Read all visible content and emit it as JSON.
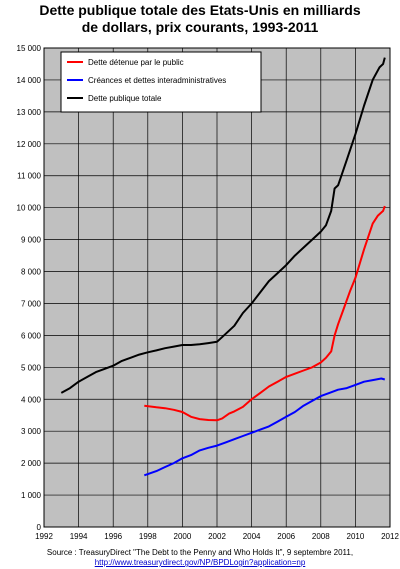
{
  "title": {
    "line1": "Dette publique totale des Etats-Unis en milliards",
    "line2": "de dollars, prix courants, 1993-2011"
  },
  "source": {
    "text": "Source : TreasuryDirect \"The Debt to the Penny and Who Holds It\", 9 septembre 2011,",
    "link": "http://www.treasurydirect.gov/NP/BPDLogin?application=np"
  },
  "chart_data": {
    "type": "line",
    "title": "Dette publique totale des Etats-Unis en milliards de dollars, prix courants, 1993-2011",
    "xlabel": "",
    "ylabel": "",
    "xlim": [
      1992,
      2012
    ],
    "ylim": [
      0,
      15000
    ],
    "grid": true,
    "legend_position": "top-left",
    "x_ticks": [
      1992,
      1994,
      1996,
      1998,
      2000,
      2002,
      2004,
      2006,
      2008,
      2010,
      2012
    ],
    "y_ticks": [
      0,
      1000,
      2000,
      3000,
      4000,
      5000,
      6000,
      7000,
      8000,
      9000,
      10000,
      11000,
      12000,
      13000,
      14000,
      15000
    ],
    "x_tick_labels": [
      "1992",
      "1994",
      "1996",
      "1998",
      "2000",
      "2002",
      "2004",
      "2006",
      "2008",
      "2010",
      "2012"
    ],
    "y_tick_labels": [
      "0",
      "1 000",
      "2 000",
      "3 000",
      "4 000",
      "5 000",
      "6 000",
      "7 000",
      "8 000",
      "9 000",
      "10 000",
      "11 000",
      "12 000",
      "13 000",
      "14 000",
      "15 000"
    ],
    "series": [
      {
        "name": "Dette détenue par le public",
        "color": "#ff0000",
        "points": [
          [
            1997.8,
            3800
          ],
          [
            1998.5,
            3750
          ],
          [
            1999.0,
            3720
          ],
          [
            1999.5,
            3670
          ],
          [
            2000.0,
            3600
          ],
          [
            2000.5,
            3450
          ],
          [
            2001.0,
            3380
          ],
          [
            2001.5,
            3350
          ],
          [
            2002.0,
            3340
          ],
          [
            2002.3,
            3400
          ],
          [
            2002.7,
            3550
          ],
          [
            2003.0,
            3620
          ],
          [
            2003.5,
            3760
          ],
          [
            2004.0,
            4000
          ],
          [
            2004.5,
            4200
          ],
          [
            2005.0,
            4400
          ],
          [
            2005.5,
            4550
          ],
          [
            2006.0,
            4700
          ],
          [
            2006.5,
            4800
          ],
          [
            2007.0,
            4900
          ],
          [
            2007.5,
            5000
          ],
          [
            2008.0,
            5150
          ],
          [
            2008.3,
            5300
          ],
          [
            2008.6,
            5500
          ],
          [
            2008.8,
            6000
          ],
          [
            2009.0,
            6350
          ],
          [
            2009.3,
            6800
          ],
          [
            2009.7,
            7400
          ],
          [
            2010.0,
            7800
          ],
          [
            2010.5,
            8700
          ],
          [
            2011.0,
            9500
          ],
          [
            2011.3,
            9750
          ],
          [
            2011.6,
            9900
          ],
          [
            2011.7,
            10050
          ]
        ]
      },
      {
        "name": "Créances et dettes interadministratives",
        "color": "#0000ff",
        "points": [
          [
            1997.8,
            1620
          ],
          [
            1998.5,
            1750
          ],
          [
            1999.0,
            1880
          ],
          [
            1999.5,
            2000
          ],
          [
            2000.0,
            2150
          ],
          [
            2000.5,
            2250
          ],
          [
            2001.0,
            2400
          ],
          [
            2001.5,
            2480
          ],
          [
            2002.0,
            2550
          ],
          [
            2002.5,
            2650
          ],
          [
            2003.0,
            2750
          ],
          [
            2003.5,
            2850
          ],
          [
            2004.0,
            2950
          ],
          [
            2004.5,
            3050
          ],
          [
            2005.0,
            3150
          ],
          [
            2005.5,
            3300
          ],
          [
            2006.0,
            3450
          ],
          [
            2006.5,
            3600
          ],
          [
            2007.0,
            3800
          ],
          [
            2007.5,
            3950
          ],
          [
            2008.0,
            4100
          ],
          [
            2008.5,
            4200
          ],
          [
            2009.0,
            4300
          ],
          [
            2009.5,
            4350
          ],
          [
            2010.0,
            4450
          ],
          [
            2010.5,
            4550
          ],
          [
            2011.0,
            4600
          ],
          [
            2011.5,
            4650
          ],
          [
            2011.7,
            4620
          ]
        ]
      },
      {
        "name": "Dette publique totale",
        "color": "#000000",
        "points": [
          [
            1993.0,
            4200
          ],
          [
            1993.5,
            4350
          ],
          [
            1994.0,
            4550
          ],
          [
            1994.5,
            4700
          ],
          [
            1995.0,
            4850
          ],
          [
            1995.5,
            4950
          ],
          [
            1996.0,
            5050
          ],
          [
            1996.5,
            5200
          ],
          [
            1997.0,
            5300
          ],
          [
            1997.5,
            5400
          ],
          [
            1998.0,
            5470
          ],
          [
            1998.5,
            5530
          ],
          [
            1999.0,
            5600
          ],
          [
            1999.5,
            5650
          ],
          [
            2000.0,
            5700
          ],
          [
            2000.5,
            5700
          ],
          [
            2001.0,
            5720
          ],
          [
            2001.5,
            5760
          ],
          [
            2002.0,
            5800
          ],
          [
            2002.5,
            6050
          ],
          [
            2003.0,
            6300
          ],
          [
            2003.5,
            6700
          ],
          [
            2004.0,
            7000
          ],
          [
            2004.5,
            7350
          ],
          [
            2005.0,
            7700
          ],
          [
            2005.5,
            7950
          ],
          [
            2006.0,
            8200
          ],
          [
            2006.5,
            8500
          ],
          [
            2007.0,
            8750
          ],
          [
            2007.5,
            9000
          ],
          [
            2008.0,
            9250
          ],
          [
            2008.3,
            9450
          ],
          [
            2008.6,
            9900
          ],
          [
            2008.8,
            10600
          ],
          [
            2009.0,
            10700
          ],
          [
            2009.5,
            11500
          ],
          [
            2010.0,
            12300
          ],
          [
            2010.5,
            13200
          ],
          [
            2011.0,
            14000
          ],
          [
            2011.4,
            14400
          ],
          [
            2011.6,
            14500
          ],
          [
            2011.7,
            14700
          ]
        ]
      }
    ]
  }
}
